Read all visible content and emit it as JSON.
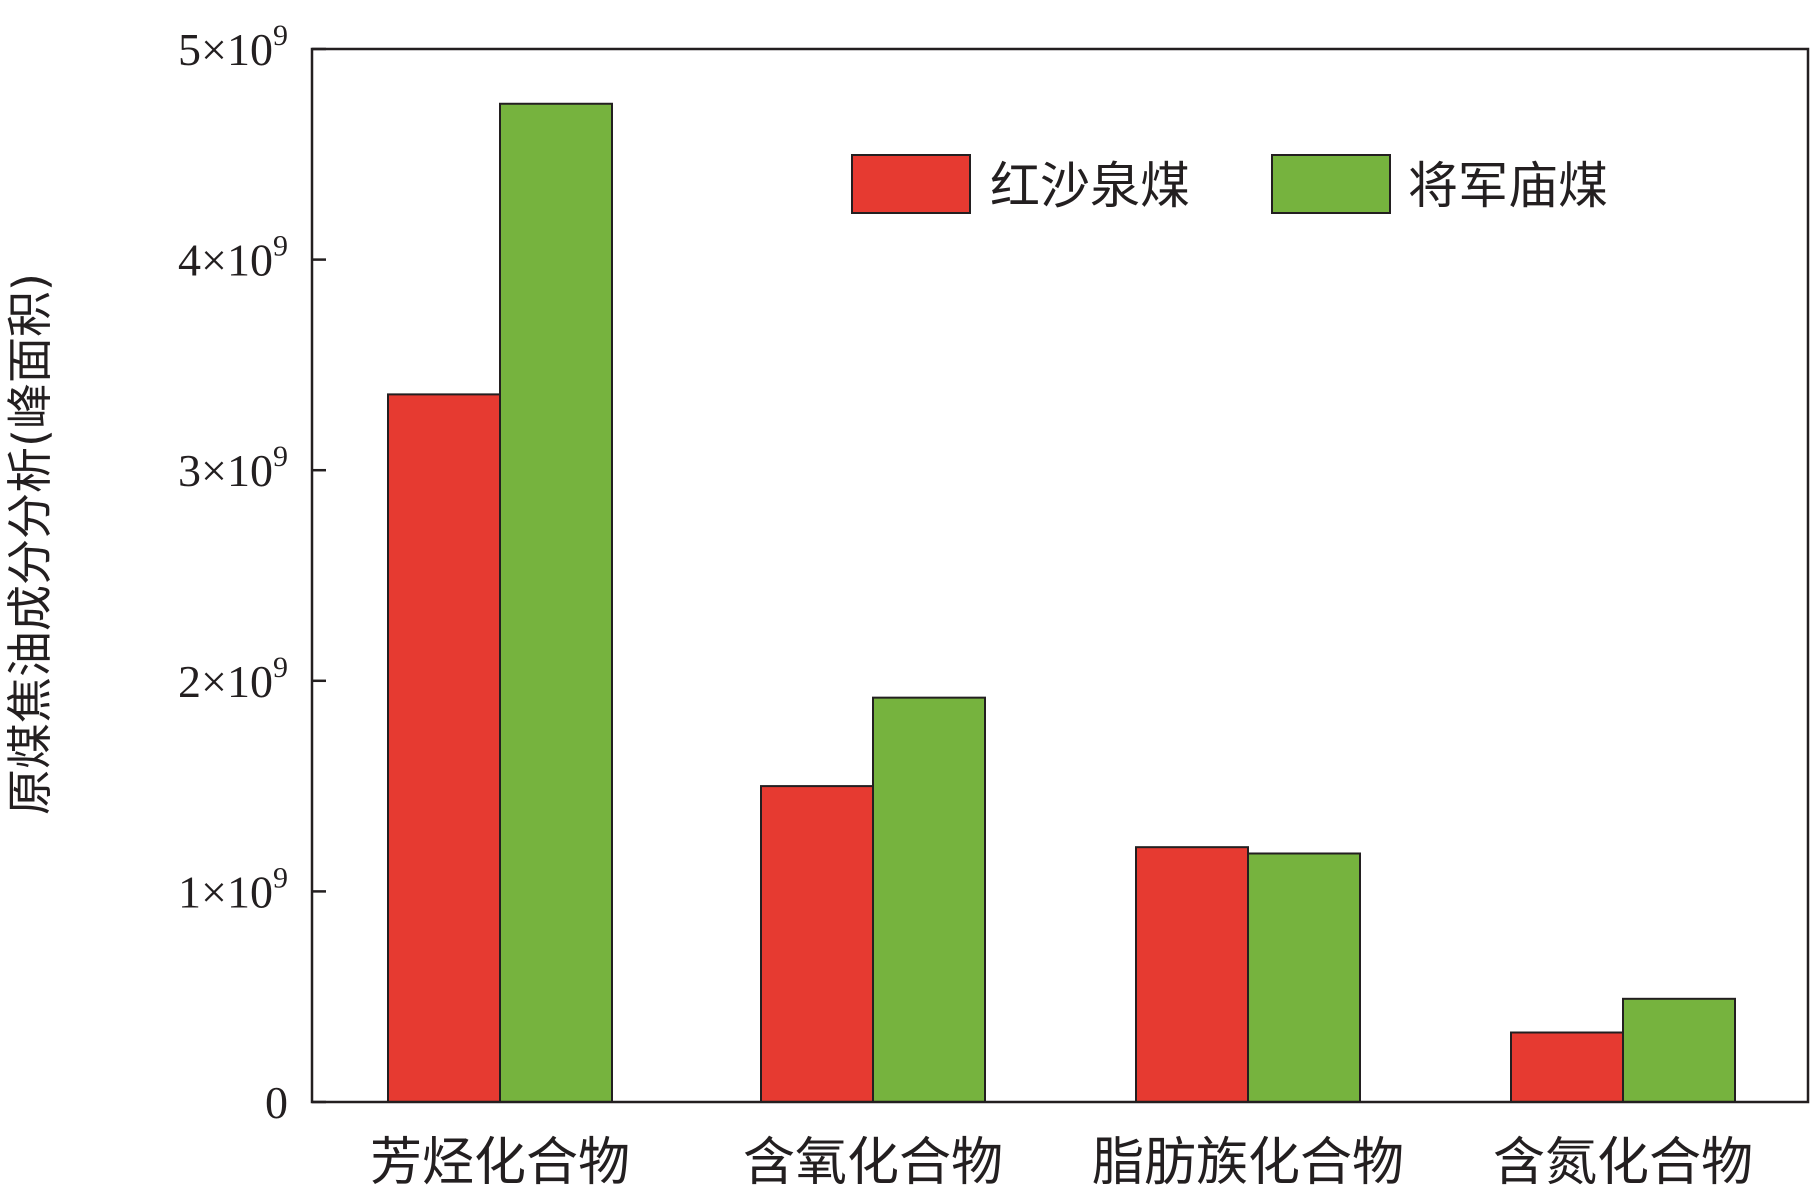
{
  "chart_data": {
    "type": "bar",
    "title": "",
    "xlabel": "",
    "ylabel": "原煤焦油成分分析(峰面积)",
    "categories": [
      "芳烃化合物",
      "含氧化合物",
      "脂肪族化合物",
      "含氮化合物"
    ],
    "series": [
      {
        "name": "红沙泉煤",
        "color": "#e63a31",
        "values": [
          3360000000,
          1500000000,
          1210000000,
          330000000
        ]
      },
      {
        "name": "将军庙煤",
        "color": "#76b33e",
        "values": [
          4740000000,
          1920000000,
          1180000000,
          490000000
        ]
      }
    ],
    "ylim": [
      0,
      5000000000
    ],
    "yticks": [
      {
        "value": 0,
        "mantissa": "0",
        "exp": ""
      },
      {
        "value": 1000000000,
        "mantissa": "1×10",
        "exp": "9"
      },
      {
        "value": 2000000000,
        "mantissa": "2×10",
        "exp": "9"
      },
      {
        "value": 3000000000,
        "mantissa": "3×10",
        "exp": "9"
      },
      {
        "value": 4000000000,
        "mantissa": "4×10",
        "exp": "9"
      },
      {
        "value": 5000000000,
        "mantissa": "5×10",
        "exp": "9"
      }
    ],
    "legend_position": "top-right",
    "grid": false
  }
}
